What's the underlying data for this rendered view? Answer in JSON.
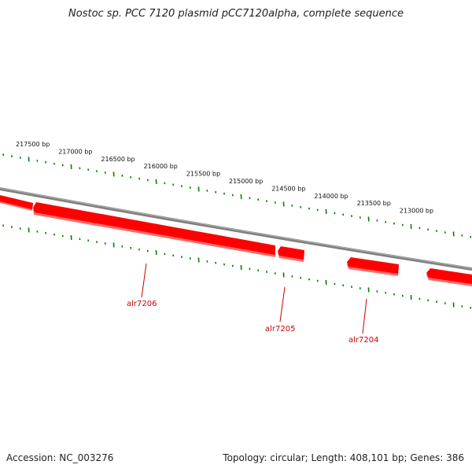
{
  "title": "Nostoc sp. PCC 7120 plasmid pCC7120alpha, complete sequence",
  "accession_text": "Accession: NC_003276",
  "summary_text": "Topology: circular; Length: 408,101 bp; Genes: 386",
  "colors": {
    "backbone": "#808080",
    "gene_fill": "#ff0000",
    "gene_shade": "#ff6a6a",
    "tick": "#008000",
    "label": "#cc0000"
  },
  "scale_labels": [
    "217500 bp",
    "217000 bp",
    "216500 bp",
    "216000 bp",
    "215500 bp",
    "215000 bp",
    "214500 bp",
    "214000 bp",
    "213500 bp",
    "213000 bp"
  ],
  "genes": [
    {
      "name": "alr7206"
    },
    {
      "name": "alr7205"
    },
    {
      "name": "alr7204"
    }
  ]
}
